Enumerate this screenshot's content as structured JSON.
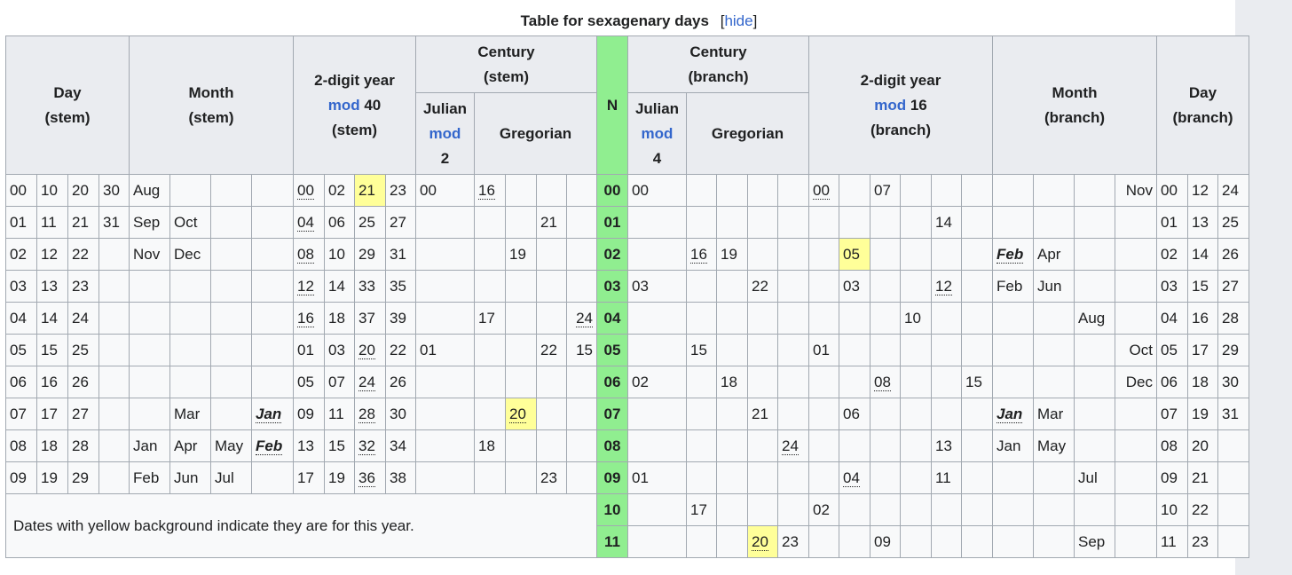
{
  "caption": {
    "title": "Table for sexagenary days",
    "open_bracket": "[",
    "hide_link": "hide",
    "close_bracket": "]"
  },
  "header": {
    "day_stem": [
      "Day",
      "(stem)"
    ],
    "month_stem": [
      "Month",
      "(stem)"
    ],
    "year_stem": [
      "2-digit year",
      "mod",
      "40",
      "(stem)"
    ],
    "century_stem": [
      "Century",
      "(stem)"
    ],
    "n": "N",
    "century_branch": [
      "Century",
      "(branch)"
    ],
    "year_branch": [
      "2-digit year",
      "mod",
      "16",
      "(branch)"
    ],
    "month_branch": [
      "Month",
      "(branch)"
    ],
    "day_branch": [
      "Day",
      "(branch)"
    ],
    "julian_stem": [
      "Julian",
      "mod",
      "2"
    ],
    "gregorian_stem": "Gregorian",
    "julian_branch": [
      "Julian",
      "mod",
      "4"
    ],
    "gregorian_branch": "Gregorian"
  },
  "note": "Dates with yellow background indicate they are for this year.",
  "rows": [
    [
      "00",
      "10",
      "20",
      "30",
      "Aug",
      "",
      "",
      "",
      "00",
      "02",
      "21",
      "23",
      "00",
      "16",
      "",
      "",
      "",
      "00",
      "00",
      "",
      "",
      "",
      "",
      "00",
      "",
      "07",
      "",
      "",
      "",
      "",
      "",
      "",
      "Nov",
      "00",
      "12",
      "24"
    ],
    [
      "01",
      "11",
      "21",
      "31",
      "Sep",
      "Oct",
      "",
      "",
      "04",
      "06",
      "25",
      "27",
      "",
      "",
      "",
      "21",
      "",
      "01",
      "",
      "",
      "",
      "",
      "",
      "",
      "",
      "",
      "",
      "14",
      "",
      "",
      "",
      "",
      "",
      "01",
      "13",
      "25"
    ],
    [
      "02",
      "12",
      "22",
      "",
      "Nov",
      "Dec",
      "",
      "",
      "08",
      "10",
      "29",
      "31",
      "",
      "",
      "19",
      "",
      "",
      "02",
      "",
      "16",
      "19",
      "",
      "",
      "",
      "05",
      "",
      "",
      "",
      "",
      "Feb",
      "Apr",
      "",
      "",
      "02",
      "14",
      "26"
    ],
    [
      "03",
      "13",
      "23",
      "",
      "",
      "",
      "",
      "",
      "12",
      "14",
      "33",
      "35",
      "",
      "",
      "",
      "",
      "",
      "03",
      "03",
      "",
      "",
      "22",
      "",
      "",
      "03",
      "",
      "",
      "12",
      "",
      "Feb",
      "Jun",
      "",
      "",
      "03",
      "15",
      "27"
    ],
    [
      "04",
      "14",
      "24",
      "",
      "",
      "",
      "",
      "",
      "16",
      "18",
      "37",
      "39",
      "",
      "17",
      "",
      "",
      "24",
      "04",
      "",
      "",
      "",
      "",
      "",
      "",
      "",
      "",
      "10",
      "",
      "",
      "",
      "",
      "Aug",
      "",
      "04",
      "16",
      "28"
    ],
    [
      "05",
      "15",
      "25",
      "",
      "",
      "",
      "",
      "",
      "01",
      "03",
      "20",
      "22",
      "01",
      "",
      "",
      "22",
      "15",
      "05",
      "",
      "15",
      "",
      "",
      "",
      "01",
      "",
      "",
      "",
      "",
      "",
      "",
      "",
      "",
      "Oct",
      "05",
      "17",
      "29"
    ],
    [
      "06",
      "16",
      "26",
      "",
      "",
      "",
      "",
      "",
      "05",
      "07",
      "24",
      "26",
      "",
      "",
      "",
      "",
      "",
      "06",
      "02",
      "",
      "18",
      "",
      "",
      "",
      "",
      "08",
      "",
      "",
      "15",
      "",
      "",
      "",
      "Dec",
      "06",
      "18",
      "30"
    ],
    [
      "07",
      "17",
      "27",
      "",
      "",
      "Mar",
      "",
      "Jan",
      "09",
      "11",
      "28",
      "30",
      "",
      "",
      "20",
      "",
      "",
      "07",
      "",
      "",
      "",
      "21",
      "",
      "",
      "06",
      "",
      "",
      "",
      "",
      "Jan",
      "Mar",
      "",
      "",
      "07",
      "19",
      "31"
    ],
    [
      "08",
      "18",
      "28",
      "",
      "Jan",
      "Apr",
      "May",
      "Feb",
      "13",
      "15",
      "32",
      "34",
      "",
      "18",
      "",
      "",
      "",
      "08",
      "",
      "",
      "",
      "",
      "24",
      "",
      "",
      "",
      "",
      "13",
      "",
      "Jan",
      "May",
      "",
      "",
      "08",
      "20",
      ""
    ],
    [
      "09",
      "19",
      "29",
      "",
      "Feb",
      "Jun",
      "Jul",
      "",
      "17",
      "19",
      "36",
      "38",
      "",
      "",
      "",
      "23",
      "",
      "09",
      "01",
      "",
      "",
      "",
      "",
      "",
      "04",
      "",
      "",
      "11",
      "",
      "",
      "",
      "Jul",
      "",
      "09",
      "21",
      ""
    ],
    [
      "",
      "",
      "",
      "",
      "",
      "",
      "",
      "",
      "",
      "",
      "",
      "",
      "",
      "",
      "",
      "",
      "",
      "10",
      "",
      "17",
      "",
      "",
      "",
      "02",
      "",
      "",
      "",
      "",
      "",
      "",
      "",
      "",
      "",
      "10",
      "22",
      ""
    ],
    [
      "",
      "",
      "",
      "",
      "",
      "",
      "",
      "",
      "",
      "",
      "",
      "",
      "",
      "",
      "",
      "",
      "",
      "11",
      "",
      "",
      "",
      "20",
      "23",
      "",
      "",
      "09",
      "",
      "",
      "",
      "",
      "",
      "Sep",
      "",
      "11",
      "23",
      ""
    ]
  ]
}
